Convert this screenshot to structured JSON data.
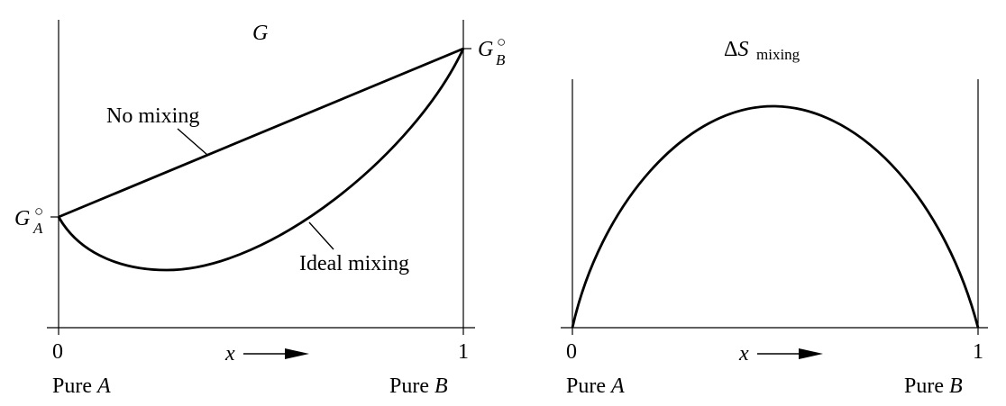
{
  "left_panel": {
    "title": "G",
    "g_a_base": "G",
    "g_a_sup": "○",
    "g_a_sub": "A",
    "g_b_base": "G",
    "g_b_sup": "○",
    "g_b_sub": "B",
    "no_mixing_label": "No mixing",
    "ideal_mixing_label": "Ideal mixing",
    "tick_0": "0",
    "tick_1": "1",
    "x_label": "x",
    "pure_a_prefix": "Pure ",
    "pure_a_var": "A",
    "pure_b_prefix": "Pure ",
    "pure_b_var": "B"
  },
  "right_panel": {
    "title_delta": "Δ",
    "title_s": "S",
    "title_sub": "mixing",
    "tick_0": "0",
    "tick_1": "1",
    "x_label": "x",
    "pure_a_prefix": "Pure ",
    "pure_a_var": "A",
    "pure_b_prefix": "Pure ",
    "pure_b_var": "B"
  }
}
